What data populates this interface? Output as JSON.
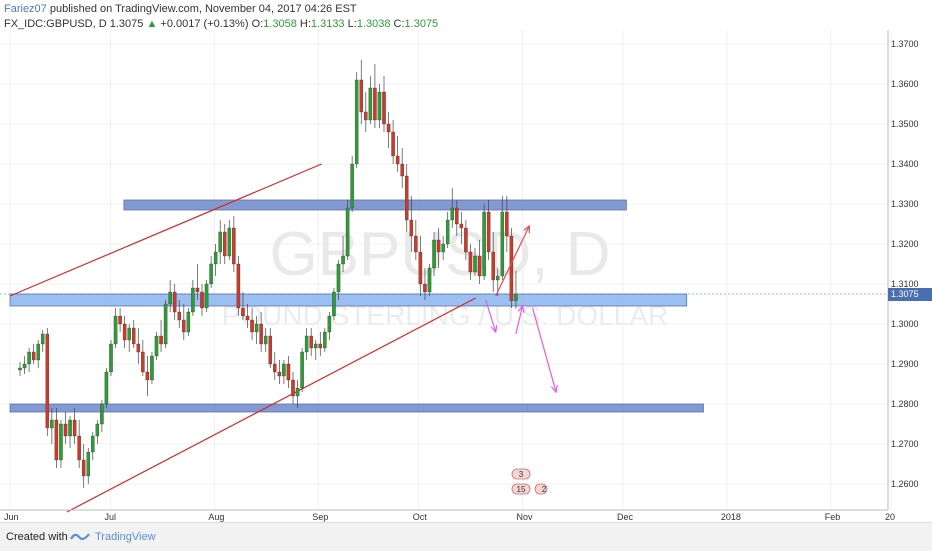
{
  "header": {
    "author": "Fariez07",
    "published": "published on TradingView.com, November 04, 2017 04:26 EST",
    "symbol": "FX_IDC:GBPUSD, D",
    "last": "1.3075",
    "change": "+0.0017 (+0.13%)",
    "o_label": "O:",
    "o_value": "1.3058",
    "h_label": "H:",
    "h_value": "1.3133",
    "l_label": "L:",
    "l_value": "1.3038",
    "c_label": "C:",
    "c_value": "1.3075"
  },
  "watermark": {
    "symbol": "GBPUSD, D",
    "description": "POUND STERLING / U.S. DOLLAR"
  },
  "footer": {
    "created_with": "Created with",
    "brand": "TradingView"
  },
  "colors": {
    "up": "#2f9b37",
    "down": "#cc3a2a",
    "zone": "#6d87c9",
    "zone_light": "#8ab4ee",
    "trendline": "#d12c2c",
    "arrow_red": "#e54b4b",
    "arrow_magenta": "#e35be0",
    "last_price_bg": "#4a6fb0"
  },
  "chart_data": {
    "type": "candlestick",
    "symbol": "FX_IDC:GBPUSD",
    "interval": "D",
    "ylim": [
      1.2535,
      1.3735
    ],
    "y_ticks": [
      "1.3700",
      "1.3600",
      "1.3500",
      "1.3400",
      "1.3300",
      "1.3200",
      "1.3100",
      "1.3000",
      "1.2900",
      "1.2800",
      "1.2700",
      "1.2600"
    ],
    "x_ticks": [
      {
        "label": "Jun",
        "day": 0
      },
      {
        "label": "Jul",
        "day": 30
      },
      {
        "label": "Aug",
        "day": 61
      },
      {
        "label": "Sep",
        "day": 92
      },
      {
        "label": "Oct",
        "day": 122
      },
      {
        "label": "Nov",
        "day": 153
      },
      {
        "label": "Dec",
        "day": 183
      },
      {
        "label": "2018",
        "day": 214
      },
      {
        "label": "Feb",
        "day": 245
      },
      {
        "label": "20",
        "day": 263
      }
    ],
    "last_price": "1.3075",
    "ohlc": [
      [
        1.2885,
        1.2905,
        1.287,
        1.289
      ],
      [
        1.289,
        1.292,
        1.2875,
        1.29
      ],
      [
        1.29,
        1.294,
        1.288,
        1.293
      ],
      [
        1.293,
        1.295,
        1.29,
        1.291
      ],
      [
        1.291,
        1.296,
        1.289,
        1.295
      ],
      [
        1.295,
        1.2985,
        1.293,
        1.2975
      ],
      [
        1.2975,
        1.299,
        1.272,
        1.274
      ],
      [
        1.274,
        1.279,
        1.27,
        1.276
      ],
      [
        1.276,
        1.279,
        1.264,
        1.266
      ],
      [
        1.266,
        1.276,
        1.264,
        1.275
      ],
      [
        1.275,
        1.278,
        1.27,
        1.272
      ],
      [
        1.272,
        1.277,
        1.269,
        1.276
      ],
      [
        1.276,
        1.279,
        1.27,
        1.272
      ],
      [
        1.272,
        1.276,
        1.264,
        1.266
      ],
      [
        1.266,
        1.27,
        1.259,
        1.262
      ],
      [
        1.262,
        1.269,
        1.26,
        1.268
      ],
      [
        1.268,
        1.273,
        1.266,
        1.272
      ],
      [
        1.272,
        1.276,
        1.27,
        1.275
      ],
      [
        1.275,
        1.281,
        1.273,
        1.28
      ],
      [
        1.28,
        1.289,
        1.279,
        1.288
      ],
      [
        1.288,
        1.296,
        1.287,
        1.295
      ],
      [
        1.295,
        1.304,
        1.294,
        1.302
      ],
      [
        1.302,
        1.304,
        1.298,
        1.3
      ],
      [
        1.3,
        1.302,
        1.294,
        1.296
      ],
      [
        1.296,
        1.3,
        1.293,
        1.299
      ],
      [
        1.299,
        1.301,
        1.294,
        1.295
      ],
      [
        1.295,
        1.299,
        1.29,
        1.293
      ],
      [
        1.293,
        1.296,
        1.287,
        1.288
      ],
      [
        1.288,
        1.292,
        1.282,
        1.286
      ],
      [
        1.286,
        1.293,
        1.285,
        1.292
      ],
      [
        1.292,
        1.298,
        1.291,
        1.297
      ],
      [
        1.297,
        1.301,
        1.293,
        1.295
      ],
      [
        1.295,
        1.306,
        1.294,
        1.305
      ],
      [
        1.305,
        1.311,
        1.303,
        1.308
      ],
      [
        1.308,
        1.31,
        1.301,
        1.303
      ],
      [
        1.303,
        1.306,
        1.299,
        1.301
      ],
      [
        1.301,
        1.305,
        1.296,
        1.298
      ],
      [
        1.298,
        1.304,
        1.297,
        1.303
      ],
      [
        1.303,
        1.311,
        1.302,
        1.309
      ],
      [
        1.309,
        1.315,
        1.306,
        1.308
      ],
      [
        1.308,
        1.31,
        1.302,
        1.304
      ],
      [
        1.304,
        1.311,
        1.303,
        1.31
      ],
      [
        1.31,
        1.317,
        1.309,
        1.315
      ],
      [
        1.315,
        1.32,
        1.312,
        1.318
      ],
      [
        1.318,
        1.326,
        1.315,
        1.323
      ],
      [
        1.323,
        1.325,
        1.315,
        1.317
      ],
      [
        1.317,
        1.326,
        1.316,
        1.324
      ],
      [
        1.324,
        1.327,
        1.313,
        1.315
      ],
      [
        1.315,
        1.317,
        1.302,
        1.304
      ],
      [
        1.304,
        1.308,
        1.301,
        1.302
      ],
      [
        1.302,
        1.305,
        1.299,
        1.301
      ],
      [
        1.301,
        1.304,
        1.296,
        1.298
      ],
      [
        1.298,
        1.302,
        1.295,
        1.3
      ],
      [
        1.3,
        1.303,
        1.293,
        1.295
      ],
      [
        1.295,
        1.299,
        1.293,
        1.297
      ],
      [
        1.297,
        1.299,
        1.289,
        1.29
      ],
      [
        1.29,
        1.293,
        1.286,
        1.288
      ],
      [
        1.288,
        1.291,
        1.285,
        1.287
      ],
      [
        1.287,
        1.291,
        1.285,
        1.29
      ],
      [
        1.29,
        1.292,
        1.284,
        1.286
      ],
      [
        1.286,
        1.288,
        1.28,
        1.282
      ],
      [
        1.282,
        1.286,
        1.279,
        1.284
      ],
      [
        1.284,
        1.294,
        1.283,
        1.293
      ],
      [
        1.293,
        1.299,
        1.291,
        1.297
      ],
      [
        1.297,
        1.299,
        1.292,
        1.294
      ],
      [
        1.294,
        1.296,
        1.291,
        1.295
      ],
      [
        1.295,
        1.298,
        1.292,
        1.294
      ],
      [
        1.294,
        1.299,
        1.293,
        1.298
      ],
      [
        1.298,
        1.303,
        1.296,
        1.302
      ],
      [
        1.302,
        1.309,
        1.301,
        1.308
      ],
      [
        1.308,
        1.316,
        1.306,
        1.315
      ],
      [
        1.315,
        1.322,
        1.313,
        1.317
      ],
      [
        1.317,
        1.331,
        1.316,
        1.329
      ],
      [
        1.329,
        1.342,
        1.328,
        1.34
      ],
      [
        1.34,
        1.363,
        1.339,
        1.361
      ],
      [
        1.361,
        1.366,
        1.35,
        1.353
      ],
      [
        1.353,
        1.358,
        1.348,
        1.351
      ],
      [
        1.351,
        1.362,
        1.35,
        1.359
      ],
      [
        1.359,
        1.365,
        1.349,
        1.351
      ],
      [
        1.351,
        1.36,
        1.349,
        1.358
      ],
      [
        1.358,
        1.362,
        1.348,
        1.35
      ],
      [
        1.35,
        1.353,
        1.344,
        1.348
      ],
      [
        1.348,
        1.351,
        1.34,
        1.342
      ],
      [
        1.342,
        1.347,
        1.338,
        1.34
      ],
      [
        1.34,
        1.344,
        1.334,
        1.337
      ],
      [
        1.337,
        1.34,
        1.323,
        1.326
      ],
      [
        1.326,
        1.332,
        1.318,
        1.322
      ],
      [
        1.322,
        1.326,
        1.316,
        1.318
      ],
      [
        1.318,
        1.322,
        1.307,
        1.31
      ],
      [
        1.31,
        1.314,
        1.306,
        1.308
      ],
      [
        1.308,
        1.315,
        1.307,
        1.314
      ],
      [
        1.314,
        1.323,
        1.312,
        1.321
      ],
      [
        1.321,
        1.324,
        1.314,
        1.318
      ],
      [
        1.318,
        1.322,
        1.316,
        1.32
      ],
      [
        1.32,
        1.328,
        1.319,
        1.326
      ],
      [
        1.326,
        1.334,
        1.324,
        1.329
      ],
      [
        1.329,
        1.331,
        1.322,
        1.325
      ],
      [
        1.325,
        1.328,
        1.32,
        1.324
      ],
      [
        1.324,
        1.326,
        1.316,
        1.318
      ],
      [
        1.318,
        1.32,
        1.311,
        1.313
      ],
      [
        1.313,
        1.319,
        1.312,
        1.317
      ],
      [
        1.317,
        1.321,
        1.31,
        1.312
      ],
      [
        1.312,
        1.33,
        1.311,
        1.328
      ],
      [
        1.328,
        1.331,
        1.316,
        1.318
      ],
      [
        1.318,
        1.323,
        1.308,
        1.311
      ],
      [
        1.311,
        1.314,
        1.307,
        1.312
      ],
      [
        1.312,
        1.332,
        1.311,
        1.328
      ],
      [
        1.328,
        1.332,
        1.318,
        1.322
      ],
      [
        1.322,
        1.324,
        1.304,
        1.3058
      ],
      [
        1.3058,
        1.3133,
        1.3038,
        1.3075
      ]
    ],
    "zones": [
      {
        "from": 1.3285,
        "to": 1.331,
        "start_day": 34,
        "end_day": 184,
        "style": "dark"
      },
      {
        "from": 1.3045,
        "to": 1.3075,
        "start_day": 0,
        "end_day": 202,
        "style": "light"
      },
      {
        "from": 1.278,
        "to": 1.28,
        "start_day": 0,
        "end_day": 207,
        "style": "dark"
      }
    ],
    "trendlines": [
      {
        "x1": 0,
        "y1": 1.307,
        "x2": 93,
        "y2": 1.34
      },
      {
        "x1": 17,
        "y1": 1.253,
        "x2": 139,
        "y2": 1.3065
      }
    ],
    "projections": [
      {
        "color": "arrow_red",
        "x1": 145,
        "y1": 1.307,
        "x2": 155,
        "y2": 1.3245
      },
      {
        "color": "arrow_magenta",
        "x1": 142,
        "y1": 1.306,
        "x2": 145,
        "y2": 1.298
      },
      {
        "color": "arrow_magenta",
        "x1": 151,
        "y1": 1.2975,
        "x2": 153,
        "y2": 1.3045
      },
      {
        "color": "arrow_magenta",
        "x1": 156,
        "y1": 1.304,
        "x2": 163,
        "y2": 1.283
      }
    ],
    "events": [
      {
        "day": 140,
        "count": "3"
      },
      {
        "day": 140,
        "count": "15"
      },
      {
        "day": 144,
        "count": "2"
      }
    ]
  }
}
